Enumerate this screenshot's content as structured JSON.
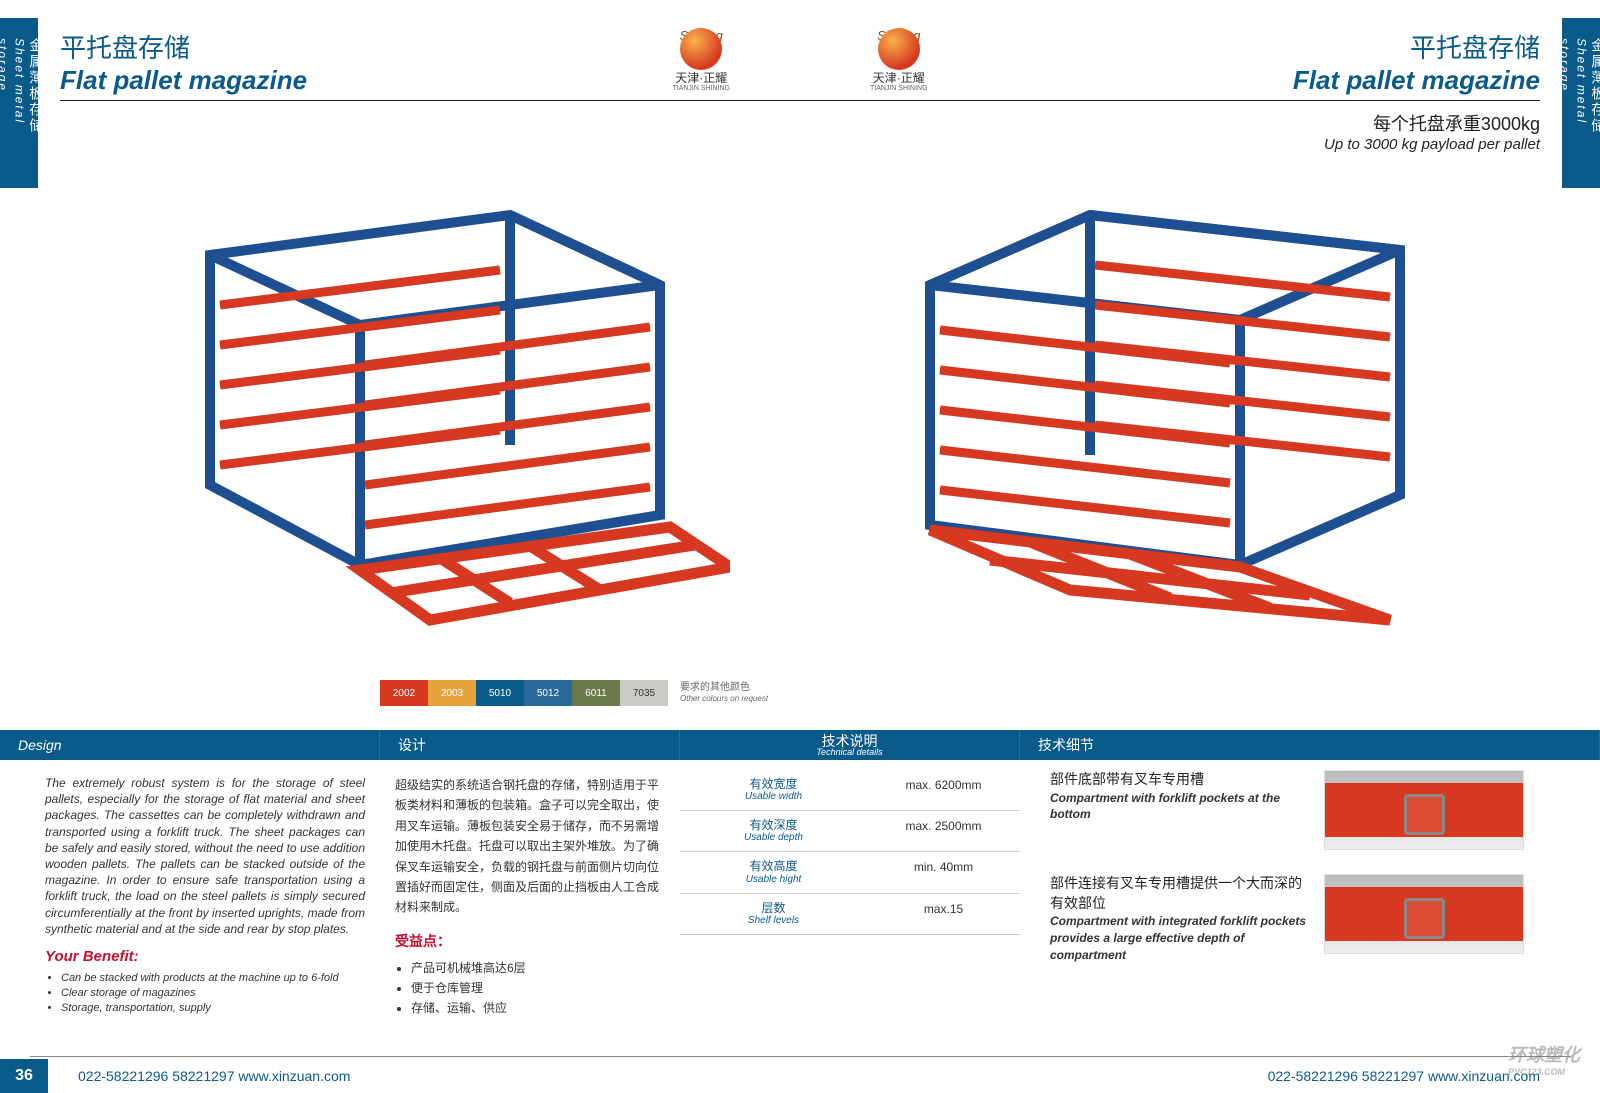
{
  "side_tab": {
    "cn": "金属薄板存储",
    "en": "Sheet metal storage"
  },
  "title": {
    "cn": "平托盘存储",
    "en": "Flat pallet magazine"
  },
  "logo": {
    "brand_cn": "天津·正耀",
    "brand_en": "TIANJIN SHINING",
    "script": "Shining"
  },
  "payload": {
    "cn": "每个托盘承重3000kg",
    "en": "Up to 3000 kg payload per pallet"
  },
  "colors": {
    "frame_blue": "#1d4f91",
    "tray_red": "#d63820",
    "brand_blue": "#0a5a8a",
    "accent_red": "#c8102e"
  },
  "swatches": [
    {
      "code": "2002",
      "hex": "#d63820"
    },
    {
      "code": "2003",
      "hex": "#e8a23a"
    },
    {
      "code": "5010",
      "hex": "#0a5a8a"
    },
    {
      "code": "5012",
      "hex": "#2a6a9a"
    },
    {
      "code": "6011",
      "hex": "#6a7a4a"
    },
    {
      "code": "7035",
      "hex": "#c9ccc7",
      "dark_text": true
    }
  ],
  "swatch_note": {
    "cn": "要求的其他颜色",
    "en": "Other colours on request"
  },
  "sections": {
    "design_en": "Design",
    "design_cn": "设计",
    "tech_cn": "技术说明",
    "tech_en": "Technical details",
    "detail_cn": "技术细节"
  },
  "design_en_body": "The extremely robust system is for the storage of steel pallets, especially for the storage of flat material and sheet packages. The cassettes can be completely withdrawn and transported using a forklift truck. The sheet packages can be safely and easily stored, without the need to use addition wooden pallets. The pallets can be stacked outside of the magazine. In order to ensure safe transportation using a forklift truck, the load on the steel pallets is simply secured circumferentially at the front by inserted uprights, made from synthetic material and at the side and rear by stop plates.",
  "benefit_en_h": "Your Benefit:",
  "benefit_en": [
    "Can be stacked with products at the machine up to 6-fold",
    "Clear storage of magazines",
    "Storage, transportation, supply"
  ],
  "design_cn_body": "超级结实的系统适合钢托盘的存储，特别适用于平板类材料和薄板的包装箱。盒子可以完全取出，使用叉车运输。薄板包装安全易于储存，而不另需增加使用木托盘。托盘可以取出主架外堆放。为了确保叉车运输安全，负载的钢托盘与前面侧片切向位置插好而固定住，侧面及后面的止挡板由人工合成材料来制成。",
  "benefit_cn_h": "受益点：",
  "benefit_cn": [
    "产品可机械堆高达6层",
    "便于仓库管理",
    "存储、运输、供应"
  ],
  "specs": [
    {
      "cn": "有效宽度",
      "en": "Usable width",
      "val": "max. 6200mm"
    },
    {
      "cn": "有效深度",
      "en": "Usable depth",
      "val": "max. 2500mm"
    },
    {
      "cn": "有效高度",
      "en": "Usable hight",
      "val": "min. 40mm"
    },
    {
      "cn": "层数",
      "en": "Shelf levels",
      "val": "max.15"
    }
  ],
  "features": [
    {
      "cn": "部件底部带有叉车专用槽",
      "en": "Compartment with forklift pockets at the bottom"
    },
    {
      "cn": "部件连接有叉车专用槽提供一个大而深的有效部位",
      "en": "Compartment with integrated forklift pockets provides a large effective depth of compartment"
    }
  ],
  "footer": {
    "page": "36",
    "contact": "022-58221296   58221297   www.xinzuan.com"
  },
  "watermark": {
    "main": "环球塑化",
    "sub": "PVC123.COM"
  }
}
